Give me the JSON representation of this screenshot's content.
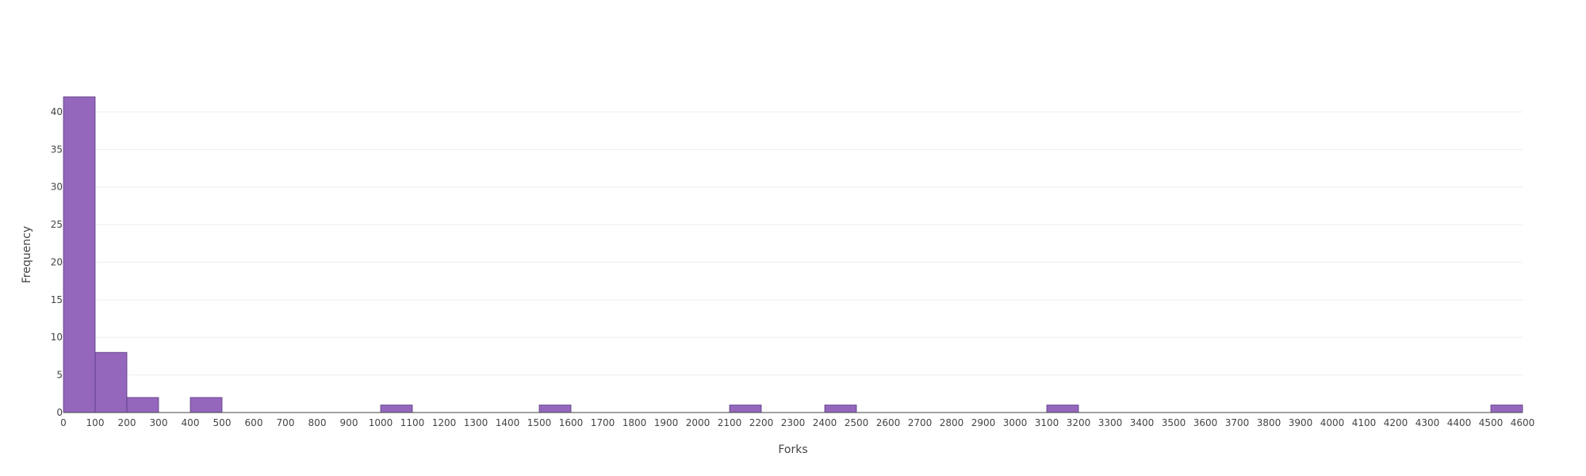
{
  "chart_data": {
    "type": "bar",
    "subtype": "histogram",
    "xlabel": "Forks",
    "ylabel": "Frequency",
    "xlim": [
      0,
      4600
    ],
    "ylim": [
      0,
      42
    ],
    "bin_width": 100,
    "grid": "horizontal",
    "bar_color": "#9467bd",
    "x_ticks": [
      "0",
      "100",
      "200",
      "300",
      "400",
      "500",
      "600",
      "700",
      "800",
      "900",
      "1000",
      "1100",
      "1200",
      "1300",
      "1400",
      "1500",
      "1600",
      "1700",
      "1800",
      "1900",
      "2000",
      "2100",
      "2200",
      "2300",
      "2400",
      "2500",
      "2600",
      "2700",
      "2800",
      "2900",
      "3000",
      "3100",
      "3200",
      "3300",
      "3400",
      "3500",
      "3600",
      "3700",
      "3800",
      "3900",
      "4000",
      "4100",
      "4200",
      "4300",
      "4400",
      "4500",
      "4600"
    ],
    "y_ticks": [
      "0",
      "5",
      "10",
      "15",
      "20",
      "25",
      "30",
      "35",
      "40"
    ],
    "bins": [
      {
        "start": 0,
        "end": 100,
        "count": 42
      },
      {
        "start": 100,
        "end": 200,
        "count": 8
      },
      {
        "start": 200,
        "end": 300,
        "count": 2
      },
      {
        "start": 400,
        "end": 500,
        "count": 2
      },
      {
        "start": 1000,
        "end": 1100,
        "count": 1
      },
      {
        "start": 1500,
        "end": 1600,
        "count": 1
      },
      {
        "start": 2100,
        "end": 2200,
        "count": 1
      },
      {
        "start": 2400,
        "end": 2500,
        "count": 1
      },
      {
        "start": 3100,
        "end": 3200,
        "count": 1
      },
      {
        "start": 4500,
        "end": 4600,
        "count": 1
      }
    ]
  }
}
